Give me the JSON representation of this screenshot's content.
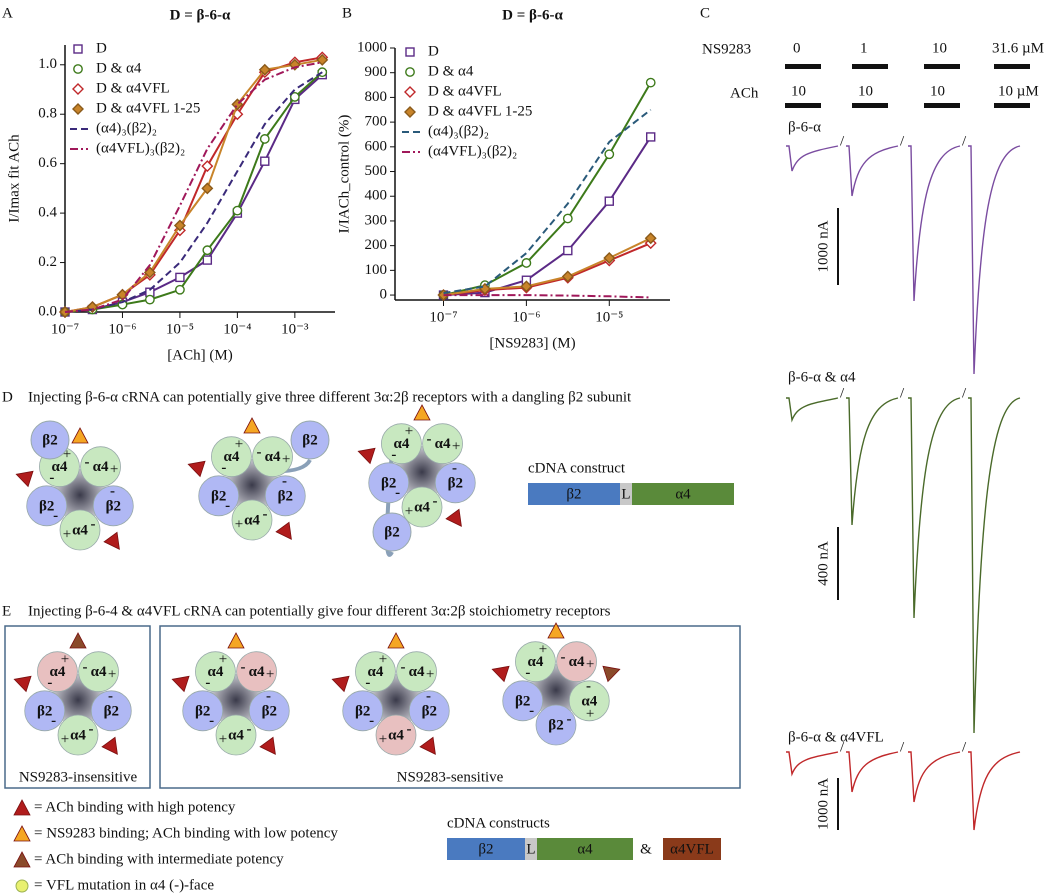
{
  "chart_data": [
    {
      "type": "line",
      "letter": "A",
      "title": "D = β-6-α",
      "x_label": "[ACh] (M)",
      "y_label": "I/Imax fit ACh",
      "x_scale": "log",
      "xlim": [
        1e-07,
        0.005
      ],
      "xticks": [
        {
          "value": 1e-07,
          "label": "10⁻⁷"
        },
        {
          "value": 1e-06,
          "label": "10⁻⁶"
        },
        {
          "value": 1e-05,
          "label": "10⁻⁵"
        },
        {
          "value": 0.0001,
          "label": "10⁻⁴"
        },
        {
          "value": 0.001,
          "label": "10⁻³"
        }
      ],
      "ylim": [
        0,
        1.08
      ],
      "yticks": [
        {
          "value": 0,
          "label": "0.0"
        },
        0.2,
        0.4,
        0.6,
        0.8,
        {
          "value": 1,
          "label": "1.0"
        }
      ],
      "x": [
        1e-07,
        3e-07,
        1e-06,
        3e-06,
        1e-05,
        3e-05,
        0.0001,
        0.0003,
        0.001,
        0.003
      ],
      "series": [
        {
          "name": "D",
          "color": "#5b2a86",
          "marker": "square",
          "line": "solid",
          "values": [
            0,
            0.01,
            0.04,
            0.08,
            0.14,
            0.21,
            0.4,
            0.61,
            0.86,
            0.96
          ]
        },
        {
          "name": "D & α4",
          "color": "#3d7a1a",
          "marker": "circle",
          "line": "solid",
          "values": [
            0,
            0.01,
            0.03,
            0.05,
            0.09,
            0.25,
            0.41,
            0.7,
            0.87,
            0.97
          ]
        },
        {
          "name": "D & α4VFL",
          "color": "#c0282a",
          "marker": "diamond",
          "line": "solid",
          "values": [
            0,
            0.02,
            0.07,
            0.15,
            0.33,
            0.59,
            0.8,
            0.97,
            1.01,
            1.03
          ]
        },
        {
          "name": "D & α4VFL 1-25",
          "color": "#c8842a",
          "marker": "diamond-filled",
          "line": "solid",
          "values": [
            0,
            0.02,
            0.07,
            0.16,
            0.35,
            0.5,
            0.84,
            0.98,
            1,
            1.02
          ]
        },
        {
          "name": "(α4)₃(β2)₂",
          "color": "#3a2a7a",
          "marker": "none",
          "line": "dashed",
          "values": [
            0,
            0.01,
            0.04,
            0.09,
            0.2,
            0.36,
            0.57,
            0.76,
            0.9,
            0.97
          ]
        },
        {
          "name": "(α4VFL)₃(β2)₂",
          "color": "#a0185a",
          "marker": "none",
          "line": "dashdot",
          "values": [
            0,
            0.01,
            0.05,
            0.19,
            0.43,
            0.66,
            0.84,
            0.94,
            0.99,
            1.01
          ]
        }
      ]
    },
    {
      "type": "line",
      "letter": "B",
      "title": "D = β-6-α",
      "x_label": "[NS9283] (M)",
      "y_label": "I/IACh_control (%)",
      "x_scale": "log",
      "xlim": [
        2.6e-08,
        5.4e-05
      ],
      "xticks": [
        {
          "value": 1e-07,
          "label": "10⁻⁷"
        },
        {
          "value": 1e-06,
          "label": "10⁻⁶"
        },
        {
          "value": 1e-05,
          "label": "10⁻⁵"
        }
      ],
      "ylim": [
        -20,
        1000
      ],
      "yticks": [
        0,
        100,
        200,
        300,
        400,
        500,
        600,
        700,
        800,
        900,
        1000
      ],
      "x": [
        1e-07,
        3.16e-07,
        1e-06,
        3.16e-06,
        1e-05,
        3.16e-05
      ],
      "series": [
        {
          "name": "D",
          "color": "#5b2a86",
          "marker": "square",
          "line": "solid",
          "values": [
            0,
            10,
            60,
            180,
            380,
            640
          ]
        },
        {
          "name": "D & α4",
          "color": "#3d7a1a",
          "marker": "circle",
          "line": "solid",
          "values": [
            0,
            40,
            130,
            310,
            570,
            860
          ]
        },
        {
          "name": "D & α4VFL",
          "color": "#c0282a",
          "marker": "diamond",
          "line": "solid",
          "values": [
            0,
            20,
            30,
            70,
            140,
            210
          ]
        },
        {
          "name": "D & α4VFL 1-25",
          "color": "#c8842a",
          "marker": "diamond-filled",
          "line": "solid",
          "values": [
            0,
            25,
            35,
            75,
            150,
            230
          ]
        },
        {
          "name": "(α4)₃(β2)₂",
          "color": "#2a5a7a",
          "marker": "none",
          "line": "dashed",
          "values": [
            8,
            35,
            170,
            370,
            620,
            750
          ]
        },
        {
          "name": "(α4VFL)₃(β2)₂",
          "color": "#a0185a",
          "marker": "none",
          "line": "dashdot",
          "values": [
            0,
            0,
            0,
            -2,
            -5,
            -10
          ]
        }
      ]
    }
  ],
  "panel_c": {
    "letter": "C",
    "ns_label": "NS9283",
    "ns_doses": [
      "0",
      "1",
      "10",
      "31.6 µM"
    ],
    "ach_label": "ACh",
    "ach_doses": [
      "10",
      "10",
      "10",
      "10 µM"
    ],
    "separator": "/",
    "traces": [
      {
        "label": "β-6-α",
        "color": "#7a4ca0",
        "scale": "1000 nA"
      },
      {
        "label": "β-6-α & α4",
        "color": "#4a6a2a",
        "scale": "400 nA"
      },
      {
        "label": "β-6-α & α4VFL",
        "color": "#c0282a",
        "scale": "1000 nA"
      }
    ]
  },
  "panel_d": {
    "letter": "D",
    "caption": "Injecting β-6-α cRNA can potentially give three different 3α:2β receptors with a dangling β2 subunit",
    "plus": "+",
    "minus": "-",
    "receptors": [
      {
        "subunits": [
          "α4",
          "α4",
          "β2",
          "α4",
          "β2"
        ],
        "colors": [
          "#c8e8c0",
          "#c8e8c0",
          "#b0b8f4",
          "#c8e8c0",
          "#b0b8f4"
        ],
        "dangling": "β2"
      },
      {
        "subunits": [
          "α4",
          "α4",
          "β2",
          "α4",
          "β2"
        ],
        "colors": [
          "#c8e8c0",
          "#c8e8c0",
          "#b0b8f4",
          "#c8e8c0",
          "#b0b8f4"
        ],
        "dangling": "β2"
      },
      {
        "subunits": [
          "α4",
          "α4",
          "β2",
          "α4",
          "β2"
        ],
        "colors": [
          "#c8e8c0",
          "#c8e8c0",
          "#b0b8f4",
          "#c8e8c0",
          "#b0b8f4"
        ],
        "dangling": "β2"
      }
    ],
    "construct": {
      "title": "cDNA construct",
      "parts": [
        "β2",
        "L",
        "α4"
      ]
    }
  },
  "panel_e": {
    "letter": "E",
    "caption": "Injecting β-6-4 & α4VFL cRNA can potentially give four different 3α:2β stoichiometry receptors",
    "receptors": [
      {
        "subunits": [
          "α4",
          "α4",
          "β2",
          "α4",
          "β2"
        ],
        "colors": [
          "#e8c0c0",
          "#c8e8c0",
          "#b0b8f4",
          "#c8e8c0",
          "#b0b8f4"
        ]
      },
      {
        "subunits": [
          "α4",
          "α4",
          "β2",
          "α4",
          "β2"
        ],
        "colors": [
          "#c8e8c0",
          "#e8c0c0",
          "#b0b8f4",
          "#c8e8c0",
          "#b0b8f4"
        ]
      },
      {
        "subunits": [
          "α4",
          "α4",
          "β2",
          "α4",
          "β2"
        ],
        "colors": [
          "#c8e8c0",
          "#c8e8c0",
          "#b0b8f4",
          "#e8c0c0",
          "#b0b8f4"
        ]
      },
      {
        "subunits": [
          "α4",
          "α4",
          "α4",
          "β2",
          "β2"
        ],
        "colors": [
          "#c8e8c0",
          "#e8c0c0",
          "#c8e8c0",
          "#b0b8f4",
          "#b0b8f4"
        ]
      }
    ],
    "groups": [
      "NS9283-insensitive",
      "NS9283-sensitive"
    ],
    "legend": [
      "= ACh binding with high potency",
      "= NS9283 binding; ACh binding with low potency",
      "= ACh binding with intermediate potency",
      "= VFL mutation in α4 (-)-face"
    ],
    "construct": {
      "title": "cDNA constructs",
      "parts": [
        "β2",
        "L",
        "α4",
        "&",
        "α4VFL"
      ]
    }
  }
}
